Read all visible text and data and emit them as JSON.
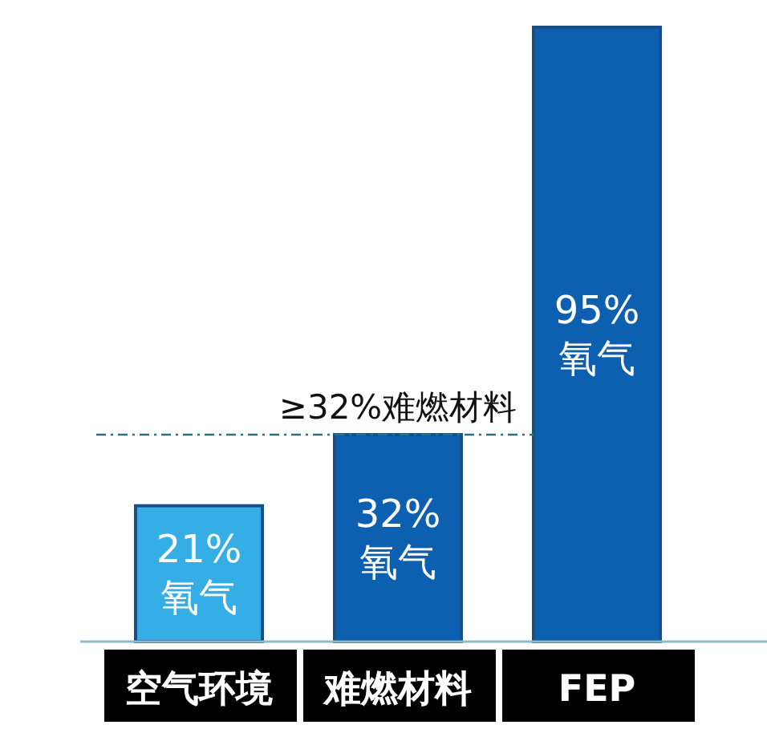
{
  "chart_data": {
    "type": "bar",
    "categories": [
      "空气环境",
      "难燃材料",
      "FEP"
    ],
    "values": [
      21,
      32,
      95
    ],
    "colors": [
      "#35aee6",
      "#0d5fb0",
      "#0d5fb0"
    ],
    "value_labels": [
      "21%\n氧气",
      "32%\n氧气",
      "95%\n氧气"
    ],
    "ref_lines": [
      {
        "axis": "y",
        "value": 32,
        "label": "≥32%难燃材料",
        "color": "#2f6f80",
        "line_style": "dashdot"
      }
    ]
  }
}
